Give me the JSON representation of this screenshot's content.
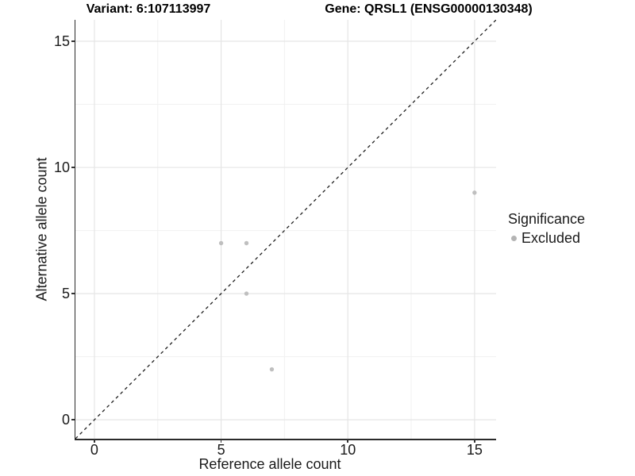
{
  "titles": {
    "variant": "Variant: 6:107113997",
    "gene": "Gene: QRSL1 (ENSG00000130348)"
  },
  "chart_data": {
    "type": "scatter",
    "title": "Variant: 6:107113997 — Gene: QRSL1 (ENSG00000130348)",
    "xlabel": "Reference allele count",
    "ylabel": "Alternative allele count",
    "xlim": [
      -0.75,
      15.85
    ],
    "ylim": [
      -0.75,
      15.85
    ],
    "x_major_ticks": [
      0,
      5,
      10,
      15
    ],
    "y_major_ticks": [
      0,
      5,
      10,
      15
    ],
    "x_minor_ticks": [
      2.5,
      7.5,
      12.5
    ],
    "y_minor_ticks": [
      2.5,
      7.5,
      12.5
    ],
    "grid": true,
    "series": [
      {
        "name": "Excluded",
        "points": [
          [
            5,
            7
          ],
          [
            6,
            7
          ],
          [
            6,
            5
          ],
          [
            7,
            2
          ],
          [
            15,
            9
          ]
        ]
      }
    ],
    "reference_line": {
      "type": "identity y=x",
      "style": "dashed"
    },
    "legend": {
      "title": "Significance",
      "entries": [
        {
          "label": "Excluded"
        }
      ],
      "position": "right"
    }
  },
  "colors": {
    "background": "#ffffff",
    "point": "#bfbfbf",
    "legend_dot": "#b4b4b4",
    "grid_major": "#e5e5e5",
    "grid_minor": "#f1f1f1",
    "axis_line": "#2b2b2b",
    "reference_line": "#1f1f1f",
    "text": "#1a1a1a",
    "title_text": "#000000"
  }
}
